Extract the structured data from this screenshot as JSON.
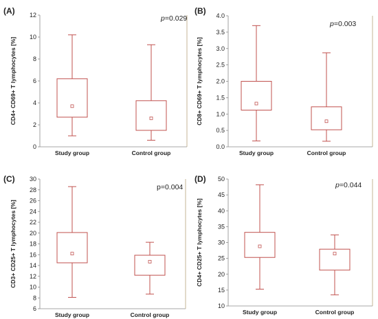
{
  "chart_data": [
    {
      "type": "box",
      "panel": "(A)",
      "ylabel": "CD4+ CD69+ T lymphocytes [%]",
      "p_text_italic": "p",
      "p_text_rest": "=0.029",
      "ylim": [
        0,
        12
      ],
      "ticks": [
        0,
        2,
        4,
        6,
        8,
        10,
        12
      ],
      "categories": [
        "Study group",
        "Control group"
      ],
      "boxes": [
        {
          "min": 1.0,
          "q1": 2.7,
          "mean": 3.7,
          "q3": 6.2,
          "max": 10.2
        },
        {
          "min": 0.6,
          "q1": 1.5,
          "mean": 2.6,
          "q3": 4.2,
          "max": 9.3
        }
      ]
    },
    {
      "type": "box",
      "panel": "(B)",
      "ylabel": "CD8+ CD69+ T lymphocytes [%]",
      "p_text_italic": "p",
      "p_text_rest": "=0.003",
      "ylim": [
        0,
        4
      ],
      "ticks": [
        "0.0",
        "0.5",
        "1.0",
        "1.5",
        "2.0",
        "2.5",
        "3.0",
        "3.5",
        "4.0"
      ],
      "categories": [
        "Study group",
        "Control group"
      ],
      "boxes": [
        {
          "min": 0.18,
          "q1": 1.12,
          "mean": 1.32,
          "q3": 2.0,
          "max": 3.7
        },
        {
          "min": 0.17,
          "q1": 0.52,
          "mean": 0.78,
          "q3": 1.22,
          "max": 2.87
        }
      ]
    },
    {
      "type": "box",
      "panel": "(C)",
      "ylabel": "CD3+ CD25+ T lymphocytes [%]",
      "p_text_italic": "",
      "p_text_rest": "p=0.004",
      "ylim": [
        6,
        30
      ],
      "ticks": [
        6,
        8,
        10,
        12,
        14,
        16,
        18,
        20,
        22,
        24,
        26,
        28,
        30
      ],
      "categories": [
        "Study group",
        "Control group"
      ],
      "boxes": [
        {
          "min": 8.1,
          "q1": 14.5,
          "mean": 16.2,
          "q3": 20.1,
          "max": 28.6
        },
        {
          "min": 8.7,
          "q1": 12.2,
          "mean": 14.7,
          "q3": 15.9,
          "max": 18.3
        }
      ]
    },
    {
      "type": "box",
      "panel": "(D)",
      "ylabel": "CD4+ CD25+ T lymphocytes [%]",
      "p_text_italic": "p",
      "p_text_rest": "=0.044",
      "ylim": [
        10,
        50
      ],
      "ticks": [
        10,
        15,
        20,
        25,
        30,
        35,
        40,
        45,
        50
      ],
      "categories": [
        "Study group",
        "Control group"
      ],
      "boxes": [
        {
          "min": 15.3,
          "q1": 25.3,
          "mean": 28.8,
          "q3": 33.2,
          "max": 48.2
        },
        {
          "min": 13.5,
          "q1": 21.3,
          "mean": 26.5,
          "q3": 27.9,
          "max": 32.4
        }
      ]
    }
  ]
}
